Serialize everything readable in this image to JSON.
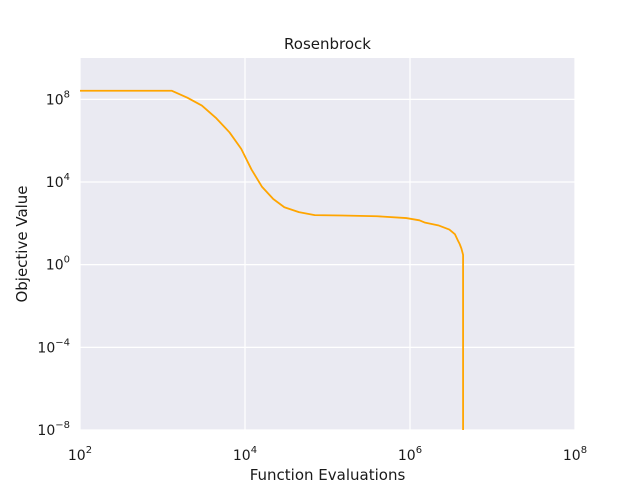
{
  "chart_data": {
    "type": "line",
    "title": "Rosenbrock",
    "xlabel": "Function Evaluations",
    "ylabel": "Objective Value",
    "xscale": "log",
    "yscale": "log",
    "xlim": [
      100,
      100000000
    ],
    "ylim": [
      1e-08,
      10000000000.0
    ],
    "grid": true,
    "background_color": "#eaeaf2",
    "grid_color": "#ffffff",
    "x_ticks": [
      {
        "base": "10",
        "exp": "2",
        "value": 100
      },
      {
        "base": "10",
        "exp": "4",
        "value": 10000
      },
      {
        "base": "10",
        "exp": "6",
        "value": 1000000
      },
      {
        "base": "10",
        "exp": "8",
        "value": 100000000
      }
    ],
    "y_ticks": [
      {
        "base": "10",
        "exp": "8",
        "value": 100000000
      },
      {
        "base": "10",
        "exp": "4",
        "value": 10000
      },
      {
        "base": "10",
        "exp": "0",
        "value": 1
      },
      {
        "base": "10",
        "exp": "−4",
        "value": 0.0001
      },
      {
        "base": "10",
        "exp": "−8",
        "value": 1e-08
      }
    ],
    "series": [
      {
        "color": "#ffa500",
        "points": [
          [
            100,
            260000000
          ],
          [
            1300,
            260000000
          ],
          [
            2000,
            120000000
          ],
          [
            3000,
            50000000
          ],
          [
            4500,
            12000000
          ],
          [
            6500,
            2500000
          ],
          [
            9000,
            400000
          ],
          [
            12000,
            40000
          ],
          [
            16000,
            6000
          ],
          [
            22000,
            1500
          ],
          [
            30000,
            600
          ],
          [
            45000,
            350
          ],
          [
            70000,
            250
          ],
          [
            150000,
            240
          ],
          [
            400000,
            220
          ],
          [
            900000,
            180
          ],
          [
            1300000,
            140
          ],
          [
            1500000,
            110
          ],
          [
            2200000,
            80
          ],
          [
            3000000,
            50
          ],
          [
            3500000,
            30
          ],
          [
            3800000,
            15
          ],
          [
            4000000,
            10
          ],
          [
            4200000,
            6
          ],
          [
            4400000,
            3
          ],
          [
            4400000,
            1e-08
          ]
        ]
      }
    ]
  }
}
